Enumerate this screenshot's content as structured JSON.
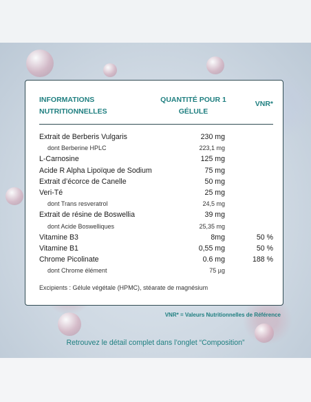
{
  "table": {
    "header": {
      "col1": "INFORMATIONS NUTRITIONNELLES",
      "col2": "QUANTITÉ POUR 1 GÉLULE",
      "col3": "VNR*"
    },
    "rows": [
      {
        "name": "Extrait de Berberis Vulgaris",
        "qty": "230 mg",
        "vnr": "",
        "sub": false
      },
      {
        "name": "dont Berberine HPLC",
        "qty": "223,1 mg",
        "vnr": "",
        "sub": true
      },
      {
        "name": "L-Carnosine",
        "qty": "125 mg",
        "vnr": "",
        "sub": false
      },
      {
        "name": "Acide R Alpha Lipoïque de Sodium",
        "qty": "75 mg",
        "vnr": "",
        "sub": false
      },
      {
        "name": "Extrait d’écorce de Canelle",
        "qty": "50 mg",
        "vnr": "",
        "sub": false
      },
      {
        "name": "Veri-Té",
        "qty": "25 mg",
        "vnr": "",
        "sub": false
      },
      {
        "name": "dont Trans resveratrol",
        "qty": "24,5 mg",
        "vnr": "",
        "sub": true
      },
      {
        "name": "Extrait de résine de Boswellia",
        "qty": "39 mg",
        "vnr": "",
        "sub": false
      },
      {
        "name": "dont Acide Boswelliques",
        "qty": "25,35 mg",
        "vnr": "",
        "sub": true
      },
      {
        "name": "Vitamine B3",
        "qty": "8mg",
        "vnr": "50 %",
        "sub": false
      },
      {
        "name": "Vitamine B1",
        "qty": "0,55 mg",
        "vnr": "50 %",
        "sub": false
      },
      {
        "name": "Chrome Picolinate",
        "qty": "0.6 mg",
        "vnr": "188 %",
        "sub": false
      },
      {
        "name": "dont Chrome élément",
        "qty": "75 µg",
        "vnr": "",
        "sub": true
      }
    ],
    "excipients": "Excipients : Gélule végétale (HPMC), stéarate de magnésium"
  },
  "legend": "VNR* = Valeurs Nutritionnelles de Référence",
  "footer": "Retrouvez le détail complet dans l’onglet “Composition”",
  "colors": {
    "accent": "#1f7f80",
    "border": "#2f4a52"
  }
}
